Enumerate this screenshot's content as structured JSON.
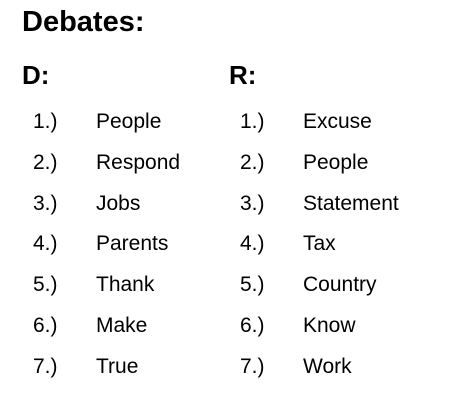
{
  "title": "Debates:",
  "columns": [
    {
      "heading": "D:",
      "items": [
        {
          "num": "1.)",
          "word": "People"
        },
        {
          "num": "2.)",
          "word": "Respond"
        },
        {
          "num": "3.)",
          "word": "Jobs"
        },
        {
          "num": "4.)",
          "word": "Parents"
        },
        {
          "num": "5.)",
          "word": "Thank"
        },
        {
          "num": "6.)",
          "word": "Make"
        },
        {
          "num": "7.)",
          "word": "True"
        }
      ]
    },
    {
      "heading": "R:",
      "items": [
        {
          "num": "1.)",
          "word": "Excuse"
        },
        {
          "num": "2.)",
          "word": "People"
        },
        {
          "num": "3.)",
          "word": "Statement"
        },
        {
          "num": "4.)",
          "word": "Tax"
        },
        {
          "num": "5.)",
          "word": "Country"
        },
        {
          "num": "6.)",
          "word": "Know"
        },
        {
          "num": "7.)",
          "word": "Work"
        }
      ]
    }
  ]
}
